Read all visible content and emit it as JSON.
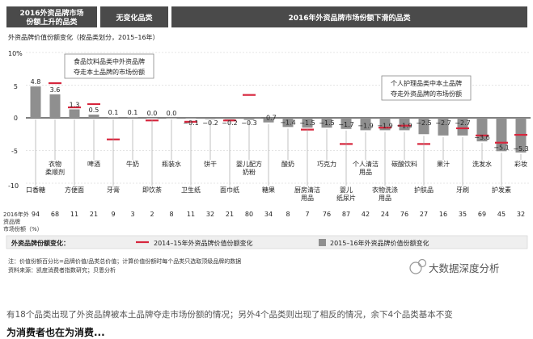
{
  "chart_data": {
    "type": "bar",
    "header": {
      "up": [
        "2016外资品牌市场",
        "份额上升的品类"
      ],
      "flat": "无变化品类",
      "down": "2016年外资品牌市场份额下滑的品类"
    },
    "subtitle": "外资品牌价值份额变化（按品类划分，2015–16年）",
    "ylabel": "10%",
    "yticks": [
      "10%",
      "5",
      "0",
      "-5",
      "-10"
    ],
    "ymin_label": "-10",
    "ylim": [
      -10,
      10
    ],
    "categories": [
      "口香糖",
      "衣物柔顺剂",
      "方便面",
      "啤酒",
      "牙膏",
      "牛奶",
      "即饮茶",
      "瓶装水",
      "卫生纸",
      "饼干",
      "面巾纸",
      "婴儿配方奶粉",
      "糖果",
      "酸奶",
      "厨房清洁用品",
      "巧克力",
      "婴儿纸尿片",
      "个人清洁用品",
      "衣物洗涤用品",
      "碳酸饮料",
      "护肤品",
      "果汁",
      "牙刷",
      "洗发水",
      "护发素",
      "彩妆"
    ],
    "values_2015_16": [
      4.8,
      3.6,
      1.3,
      0.5,
      0.1,
      0.1,
      0.0,
      0.0,
      -0.1,
      -0.2,
      -0.2,
      -0.3,
      -0.7,
      -1.4,
      -1.5,
      -1.5,
      -1.7,
      -1.9,
      -1.9,
      -1.9,
      -2.5,
      -2.7,
      -2.7,
      -3.6,
      -5.1,
      -5.3
    ],
    "value_labels": [
      "4.8",
      "3.6",
      "1.3",
      "0.5",
      "0.1",
      "0.1",
      "0.0",
      "0.0",
      "−0.1",
      "−0.2",
      "−0.2",
      "−0.3",
      "−0.7",
      "−1.4",
      "−1.5",
      "−1.5",
      "−1.7",
      "−1.9",
      "−1.9",
      "−1.9",
      "−2.5",
      "−2.7",
      "−2.7",
      "−3.6",
      "−5.1",
      "−5.3"
    ],
    "values_2014_15": [
      null,
      5.3,
      1.6,
      2.1,
      -3.3,
      null,
      -0.4,
      null,
      -0.6,
      null,
      -0.4,
      3.5,
      null,
      null,
      -1.8,
      null,
      -4.0,
      null,
      -1.5,
      -1.2,
      -4.0,
      null,
      -1.6,
      -2.7,
      -3.8,
      -2.6
    ],
    "share_label": [
      "2016年外",
      "资品牌",
      "市场份额（%）"
    ],
    "share_2016": [
      "94",
      "68",
      "11",
      "21",
      "9",
      "3",
      "2",
      "8",
      "11",
      "32",
      "21",
      "80",
      "34",
      "8",
      "7",
      "76",
      "87",
      "42",
      "24",
      "76",
      "27",
      "16",
      "35",
      "69",
      "45",
      "32"
    ],
    "annotations": [
      "食品饮料品类中外资品牌",
      "夺走本土品牌的市场份额",
      "个人护理品类中本土品牌",
      "夺走外资品牌的市场份额"
    ],
    "legend": {
      "title": "外资品牌份额变化：",
      "line": "2014–15年外资品牌价值份额变化",
      "bar": "2015–16年外资品牌价值份额变化"
    },
    "notes": [
      "注：价值份额百分比=品牌价值/品类总价值；计算价值份额时每个品类只选取顶级品牌的数据",
      "资料来源：凯度消费者指数研究；贝恩分析"
    ],
    "watermark": "大数据深度分析",
    "colors": {
      "bar": "#8f8f8f",
      "line": "#d7263d",
      "header": "#4a4a4a",
      "grid": "#c9c9c9"
    }
  },
  "caption": "有18个品类出现了外资品牌被本土品牌夺走市场份额的情况；另外4个品类则出现了相反的情况，余下4个品类基本不变",
  "cut_text": "为消费者也在为消费..."
}
